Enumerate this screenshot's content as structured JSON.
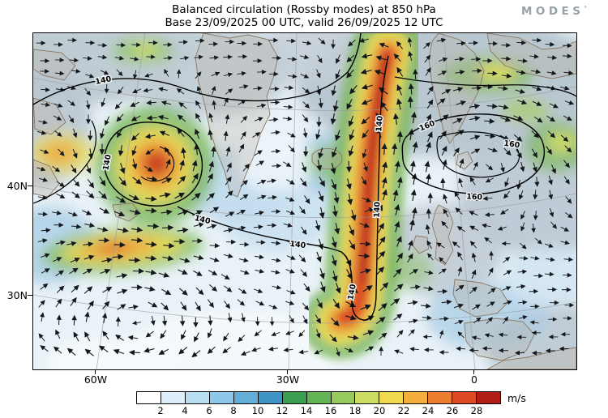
{
  "header": {
    "title": "Balanced circulation (Rossby modes) at 850 hPa",
    "subtitle": "Base 23/09/2025 00 UTC, valid 26/09/2025 12 UTC"
  },
  "brand": {
    "text": "MODES",
    "mark": "°"
  },
  "axes": {
    "lat": [
      "40N",
      "30N"
    ],
    "lon": [
      "60W",
      "30W",
      "0"
    ]
  },
  "map": {
    "contour_labels": {
      "low": "140",
      "high": "160"
    }
  },
  "colorbar": {
    "ticks": [
      "2",
      "4",
      "6",
      "8",
      "10",
      "12",
      "14",
      "16",
      "18",
      "20",
      "22",
      "24",
      "26",
      "28"
    ],
    "unit": "m/s",
    "colors": [
      "#ffffff",
      "#ddeff9",
      "#b8def2",
      "#8ec8e8",
      "#64afd8",
      "#3f94c6",
      "#3b9e4e",
      "#63b455",
      "#97ca5d",
      "#ccdd61",
      "#f0d94f",
      "#f3ae3d",
      "#ec7f2f",
      "#de4a26",
      "#b01d15"
    ]
  },
  "chart_data": {
    "type": "heatmap",
    "title": "Balanced circulation (Rossby modes) at 850 hPa",
    "subtitle": "Base 23/09/2025 00 UTC, valid 26/09/2025 12 UTC",
    "field": "balanced (Rossby-mode) wind speed at 850 hPa with wind-direction arrows and streamfunction contours",
    "unit": "m/s",
    "color_levels": [
      2,
      4,
      6,
      8,
      10,
      12,
      14,
      16,
      18,
      20,
      22,
      24,
      26,
      28
    ],
    "palette": [
      "#ffffff",
      "#ddeff9",
      "#b8def2",
      "#8ec8e8",
      "#64afd8",
      "#3f94c6",
      "#3b9e4e",
      "#63b455",
      "#97ca5d",
      "#ccdd61",
      "#f0d94f",
      "#f3ae3d",
      "#ec7f2f",
      "#de4a26",
      "#b01d15"
    ],
    "x_tick_labels": [
      "60W",
      "30W",
      "0"
    ],
    "y_tick_labels": [
      "40N",
      "30N"
    ],
    "contour_values_labeled": [
      140,
      160
    ],
    "region": "North Atlantic, Greenland and western Europe",
    "notable_features": [
      {
        "feature": "closed cyclonic vortex with wind maximum above 28 m/s inside closed 140 contour",
        "location": "northwest Atlantic near 52W 42N"
      },
      {
        "feature": "narrow north-south jet band exceeding 28 m/s wrapped by hairpin 140 contour",
        "location": "central Atlantic near 25W from about 28N to the northern edge"
      },
      {
        "feature": "secondary speed maximum 16-24 m/s in zonal band",
        "location": "west Atlantic near 55W 33N"
      },
      {
        "feature": "closed 160 contours over anticyclonic circulation",
        "location": "northern Europe / Baltic sector"
      },
      {
        "feature": "weak winds below 6 m/s in anticyclonic gyre",
        "location": "subtropical Atlantic near 55W 27N and south-central Atlantic"
      },
      {
        "feature": "small closed cyclonic circulation 12-16 m/s",
        "location": "south of Greenland near 33W 47N"
      }
    ]
  }
}
